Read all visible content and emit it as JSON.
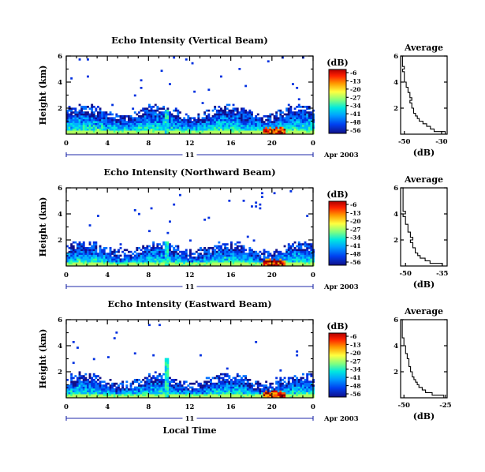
{
  "chart_data": [
    {
      "type": "heatmap",
      "title": "Echo Intensity (Vertical Beam)",
      "ylabel": "Height (km)",
      "ylim": [
        0,
        6
      ],
      "yticks": [
        "6",
        "4",
        "2"
      ],
      "xlim": [
        0,
        24
      ],
      "xticks": [
        "0",
        "4",
        "8",
        "12",
        "16",
        "20",
        "0"
      ],
      "date_day": "11",
      "date_label": "Apr 2003",
      "colorbar": {
        "unit": "(dB)",
        "ticks": [
          "-6",
          "-13",
          "-20",
          "-27",
          "-34",
          "-41",
          "-48",
          "-56"
        ]
      },
      "average": {
        "title": "Average",
        "xlabel": "(dB)",
        "xticks": [
          "-50",
          "-30"
        ],
        "xlim": [
          -52,
          -27
        ],
        "ylim": [
          0,
          6
        ],
        "yticks": [
          "6",
          "4",
          "2"
        ],
        "profile_height": [
          0.1,
          0.3,
          0.5,
          0.7,
          0.9,
          1.1,
          1.3,
          1.5,
          1.7,
          1.9,
          2.1,
          2.3,
          2.5,
          2.7,
          2.9,
          3.1,
          3.3,
          3.5,
          3.7,
          3.9,
          4.1,
          4.3,
          4.5,
          4.7,
          4.9,
          5.1,
          5.3,
          5.5,
          5.7,
          5.9
        ],
        "profile_db": [
          -28,
          -34,
          -36,
          -38,
          -40,
          -42,
          -43,
          -44,
          -45,
          -45,
          -46,
          -46,
          -47,
          -46,
          -47,
          -47,
          -48,
          -48,
          -49,
          -49,
          -50,
          -50,
          -50,
          -50,
          -51,
          -50,
          -51,
          -51,
          -51,
          -51
        ]
      }
    },
    {
      "type": "heatmap",
      "title": "Echo Intensity (Northward Beam)",
      "ylabel": "Height (km)",
      "ylim": [
        0,
        6
      ],
      "yticks": [
        "6",
        "4",
        "2"
      ],
      "xlim": [
        0,
        24
      ],
      "xticks": [
        "0",
        "4",
        "8",
        "12",
        "16",
        "20",
        "0"
      ],
      "date_day": "11",
      "date_label": "Apr 2003",
      "colorbar": {
        "unit": "(dB)",
        "ticks": [
          "-6",
          "-13",
          "-20",
          "-27",
          "-34",
          "-41",
          "-48",
          "-56"
        ]
      },
      "average": {
        "title": "Average",
        "xlabel": "(dB)",
        "xticks": [
          "-50",
          "-35"
        ],
        "xlim": [
          -52,
          -33
        ],
        "ylim": [
          0,
          6
        ],
        "yticks": [
          "6",
          "4",
          "2"
        ],
        "profile_height": [
          0.1,
          0.3,
          0.5,
          0.7,
          0.9,
          1.1,
          1.3,
          1.5,
          1.7,
          1.9,
          2.1,
          2.3,
          2.5,
          2.7,
          2.9,
          3.1,
          3.3,
          3.5,
          3.7,
          3.9,
          4.1,
          4.3,
          4.5,
          4.7,
          4.9,
          5.1,
          5.3,
          5.5,
          5.7,
          5.9
        ],
        "profile_db": [
          -35,
          -40,
          -42,
          -44,
          -45,
          -46,
          -46,
          -47,
          -47,
          -48,
          -47,
          -48,
          -48,
          -49,
          -49,
          -49,
          -50,
          -50,
          -50,
          -51,
          -50,
          -51,
          -51,
          -51,
          -51,
          -51,
          -51,
          -51,
          -51,
          -51
        ]
      }
    },
    {
      "type": "heatmap",
      "title": "Echo Intensity (Eastward Beam)",
      "ylabel": "Height (km)",
      "ylim": [
        0,
        6
      ],
      "yticks": [
        "6",
        "4",
        "2"
      ],
      "xlim": [
        0,
        24
      ],
      "xticks": [
        "0",
        "4",
        "8",
        "12",
        "16",
        "20",
        "0"
      ],
      "xlabel": "Local Time",
      "date_day": "11",
      "date_label": "Apr 2003",
      "colorbar": {
        "unit": "(dB)",
        "ticks": [
          "-6",
          "-13",
          "-20",
          "-27",
          "-34",
          "-41",
          "-48",
          "-56"
        ]
      },
      "average": {
        "title": "Average",
        "xlabel": "(dB)",
        "xticks": [
          "-50",
          "-25"
        ],
        "xlim": [
          -52,
          -24
        ],
        "ylim": [
          0,
          6
        ],
        "yticks": [
          "6",
          "4",
          "2"
        ],
        "profile_height": [
          0.1,
          0.3,
          0.5,
          0.7,
          0.9,
          1.1,
          1.3,
          1.5,
          1.7,
          1.9,
          2.1,
          2.3,
          2.5,
          2.7,
          2.9,
          3.1,
          3.3,
          3.5,
          3.7,
          3.9,
          4.1,
          4.3,
          4.5,
          4.7,
          4.9,
          5.1,
          5.3,
          5.5,
          5.7,
          5.9
        ],
        "profile_db": [
          -26,
          -33,
          -37,
          -39,
          -41,
          -42,
          -43,
          -44,
          -45,
          -45,
          -46,
          -46,
          -47,
          -47,
          -47,
          -48,
          -48,
          -49,
          -49,
          -49,
          -50,
          -50,
          -50,
          -51,
          -51,
          -51,
          -51,
          -51,
          -51,
          -51
        ]
      }
    }
  ],
  "colors": {
    "scale": [
      "#8a0000",
      "#e00000",
      "#ff5a00",
      "#ffb000",
      "#ffff40",
      "#b0ff60",
      "#40ff90",
      "#00e8e0",
      "#00b4ff",
      "#0070ff",
      "#0030e0",
      "#10108a"
    ],
    "axis": "#000000",
    "time_bar": "#1f2aa8"
  }
}
